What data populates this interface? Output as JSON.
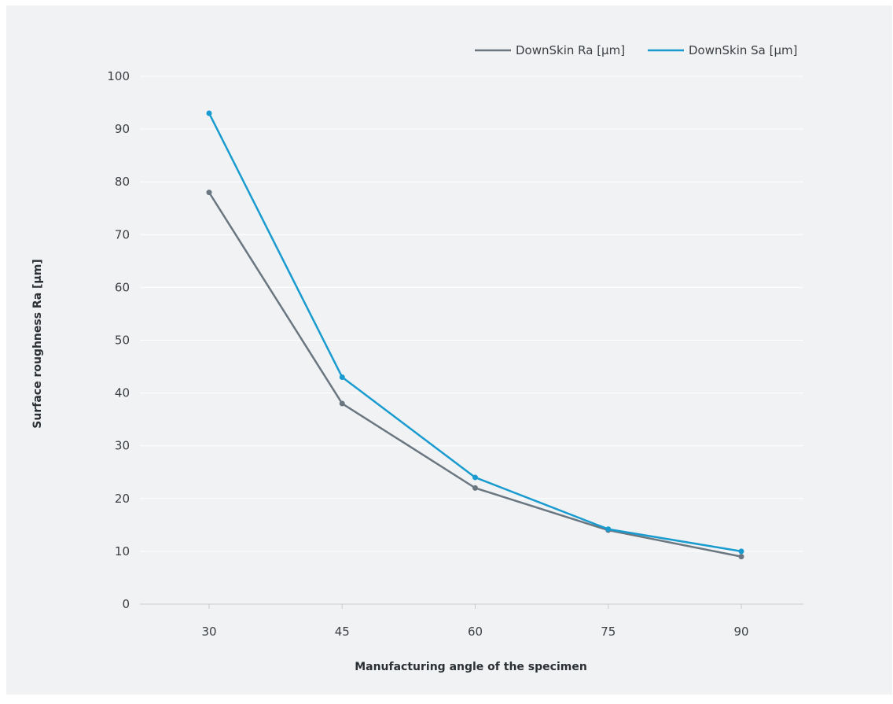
{
  "chart_data": {
    "type": "line",
    "x": [
      30,
      45,
      60,
      75,
      90
    ],
    "categories": [
      "30",
      "45",
      "60",
      "75",
      "90"
    ],
    "series": [
      {
        "name": "DownSkin Ra [µm]",
        "values": [
          78,
          38,
          22,
          14,
          9
        ],
        "color": "#6a7680"
      },
      {
        "name": "DownSkin Sa [µm]",
        "values": [
          93,
          43,
          24,
          14.2,
          10
        ],
        "color": "#1a9bcf"
      }
    ],
    "xlabel": "Manufacturing angle of the specimen",
    "ylabel": "Surface roughness Ra [µm]",
    "ylim": [
      0,
      100
    ],
    "yticks": [
      "0",
      "10",
      "20",
      "30",
      "40",
      "50",
      "60",
      "70",
      "80",
      "90",
      "100"
    ],
    "grid": true,
    "legend_position": "top-right",
    "colors": {
      "background": "#f1f2f4",
      "grid": "#ffffff"
    }
  }
}
